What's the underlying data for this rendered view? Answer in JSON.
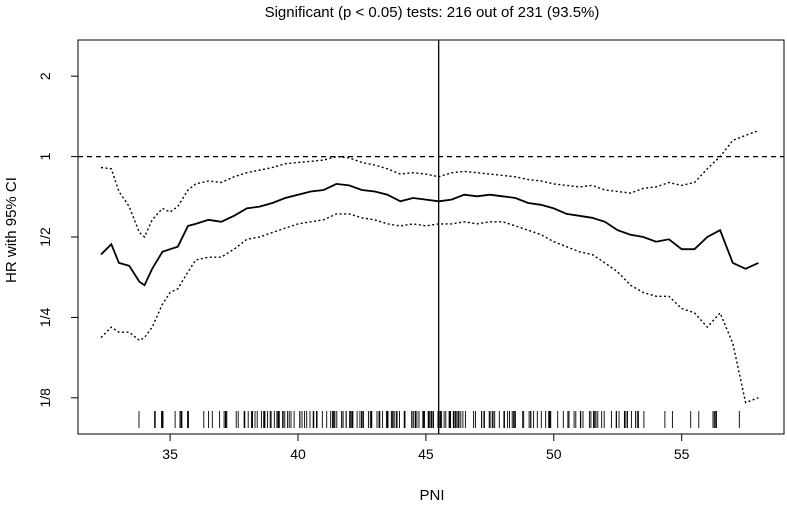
{
  "chart_data": {
    "type": "line",
    "title": "Significant (p < 0.05) tests: 216 out of 231 (93.5%)",
    "xlabel": "PNI",
    "ylabel": "HR with 95% CI",
    "xlim": [
      31.4,
      59.0
    ],
    "ylim_log2": [
      -3.45,
      1.45
    ],
    "y_scale": "log2",
    "x_ticks": [
      35,
      40,
      45,
      50,
      55
    ],
    "x_tick_labels": [
      "35",
      "40",
      "45",
      "50",
      "55"
    ],
    "y_ticks": [
      2,
      1,
      0.5,
      0.25,
      0.125
    ],
    "y_tick_labels": [
      "2",
      "1",
      "1/2",
      "1/4",
      "1/8"
    ],
    "reference_line_hr": 1,
    "vertical_line_x": 45.5,
    "series": [
      {
        "role": "estimate",
        "x": [
          32.3,
          32.7,
          33.0,
          33.4,
          33.8,
          34.0,
          34.3,
          34.7,
          35.0,
          35.3,
          35.7,
          36.0,
          36.5,
          37.0,
          37.5,
          38.0,
          38.5,
          39.0,
          39.5,
          40.0,
          40.5,
          41.0,
          41.5,
          42.0,
          42.5,
          43.0,
          43.5,
          44.0,
          44.5,
          45.0,
          45.5,
          46.0,
          46.5,
          47.0,
          47.5,
          48.0,
          48.5,
          49.0,
          49.5,
          50.0,
          50.5,
          51.0,
          51.5,
          52.0,
          52.5,
          53.0,
          53.5,
          54.0,
          54.5,
          55.0,
          55.5,
          56.0,
          56.5,
          57.0,
          57.5,
          58.0
        ],
        "hr": [
          0.43,
          0.47,
          0.4,
          0.39,
          0.34,
          0.33,
          0.38,
          0.44,
          0.45,
          0.46,
          0.55,
          0.56,
          0.58,
          0.57,
          0.6,
          0.64,
          0.65,
          0.67,
          0.7,
          0.72,
          0.74,
          0.75,
          0.79,
          0.78,
          0.75,
          0.74,
          0.72,
          0.68,
          0.7,
          0.69,
          0.68,
          0.69,
          0.72,
          0.71,
          0.72,
          0.71,
          0.7,
          0.67,
          0.66,
          0.64,
          0.61,
          0.6,
          0.59,
          0.57,
          0.53,
          0.51,
          0.5,
          0.48,
          0.49,
          0.45,
          0.45,
          0.5,
          0.53,
          0.4,
          0.38,
          0.4
        ]
      },
      {
        "role": "upper-ci",
        "x": [
          32.3,
          32.7,
          33.0,
          33.4,
          33.8,
          34.0,
          34.3,
          34.7,
          35.0,
          35.3,
          35.7,
          36.0,
          36.5,
          37.0,
          37.5,
          38.0,
          38.5,
          39.0,
          39.5,
          40.0,
          40.5,
          41.0,
          41.5,
          42.0,
          42.5,
          43.0,
          43.5,
          44.0,
          44.5,
          45.0,
          45.5,
          46.0,
          46.5,
          47.0,
          47.5,
          48.0,
          48.5,
          49.0,
          49.5,
          50.0,
          50.5,
          51.0,
          51.5,
          52.0,
          52.5,
          53.0,
          53.5,
          54.0,
          54.5,
          55.0,
          55.5,
          56.0,
          56.5,
          57.0,
          57.5,
          58.0
        ],
        "hr": [
          0.91,
          0.9,
          0.74,
          0.65,
          0.52,
          0.5,
          0.58,
          0.64,
          0.62,
          0.65,
          0.75,
          0.79,
          0.81,
          0.8,
          0.84,
          0.87,
          0.89,
          0.91,
          0.94,
          0.95,
          0.96,
          0.97,
          1.0,
          0.99,
          0.95,
          0.93,
          0.9,
          0.86,
          0.87,
          0.86,
          0.84,
          0.87,
          0.88,
          0.87,
          0.86,
          0.85,
          0.84,
          0.82,
          0.81,
          0.79,
          0.78,
          0.77,
          0.78,
          0.75,
          0.74,
          0.73,
          0.76,
          0.77,
          0.8,
          0.78,
          0.8,
          0.9,
          1.0,
          1.15,
          1.2,
          1.25
        ]
      },
      {
        "role": "lower-ci",
        "x": [
          32.3,
          32.7,
          33.0,
          33.4,
          33.8,
          34.0,
          34.3,
          34.7,
          35.0,
          35.3,
          35.7,
          36.0,
          36.5,
          37.0,
          37.5,
          38.0,
          38.5,
          39.0,
          39.5,
          40.0,
          40.5,
          41.0,
          41.5,
          42.0,
          42.5,
          43.0,
          43.5,
          44.0,
          44.5,
          45.0,
          45.5,
          46.0,
          46.5,
          47.0,
          47.5,
          48.0,
          48.5,
          49.0,
          49.5,
          50.0,
          50.5,
          51.0,
          51.5,
          52.0,
          52.5,
          53.0,
          53.5,
          54.0,
          54.5,
          55.0,
          55.5,
          56.0,
          56.5,
          57.0,
          57.5,
          58.0
        ],
        "hr": [
          0.21,
          0.23,
          0.22,
          0.22,
          0.205,
          0.21,
          0.23,
          0.28,
          0.31,
          0.32,
          0.37,
          0.41,
          0.42,
          0.42,
          0.45,
          0.49,
          0.5,
          0.52,
          0.54,
          0.56,
          0.57,
          0.58,
          0.61,
          0.61,
          0.59,
          0.58,
          0.56,
          0.55,
          0.56,
          0.55,
          0.56,
          0.56,
          0.57,
          0.56,
          0.57,
          0.57,
          0.55,
          0.53,
          0.51,
          0.48,
          0.46,
          0.44,
          0.43,
          0.4,
          0.37,
          0.33,
          0.31,
          0.3,
          0.3,
          0.27,
          0.26,
          0.23,
          0.26,
          0.2,
          0.12,
          0.125
        ]
      }
    ],
    "rug_range": [
      32.3,
      58.4
    ],
    "rug_count": 231
  }
}
